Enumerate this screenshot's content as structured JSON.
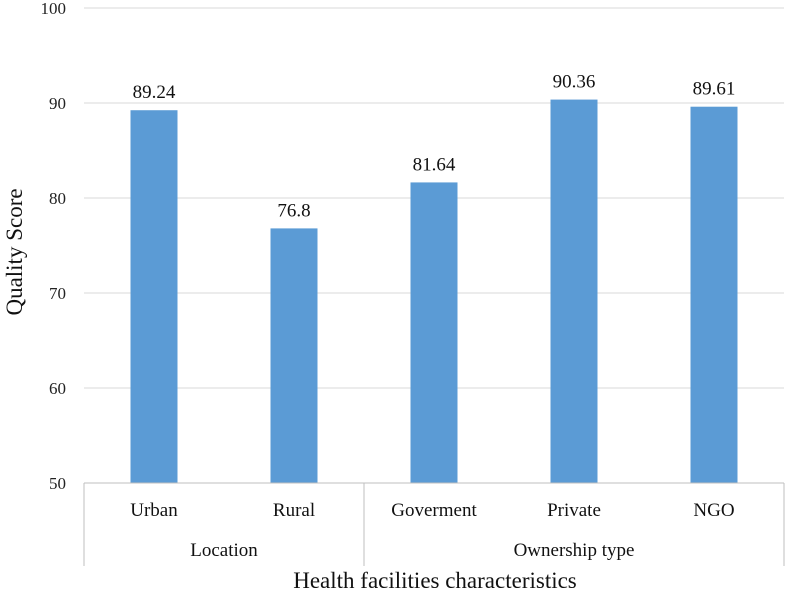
{
  "chart_data": {
    "type": "bar",
    "categories": [
      "Urban",
      "Rural",
      "Goverment",
      "Private",
      "NGO"
    ],
    "groups": [
      {
        "label": "Location",
        "categories": [
          "Urban",
          "Rural"
        ]
      },
      {
        "label": "Ownership type",
        "categories": [
          "Goverment",
          "Private",
          "NGO"
        ]
      }
    ],
    "values": [
      89.24,
      76.8,
      81.64,
      90.36,
      89.61
    ],
    "data_labels": [
      "89.24",
      "76.8",
      "81.64",
      "90.36",
      "89.61"
    ],
    "xlabel": "Health facilities characteristics",
    "ylabel": "Quality Score",
    "ylim": [
      50,
      100
    ],
    "yticks": [
      50,
      60,
      70,
      80,
      90,
      100
    ],
    "grid": true,
    "bar_color": "#5b9bd5"
  }
}
